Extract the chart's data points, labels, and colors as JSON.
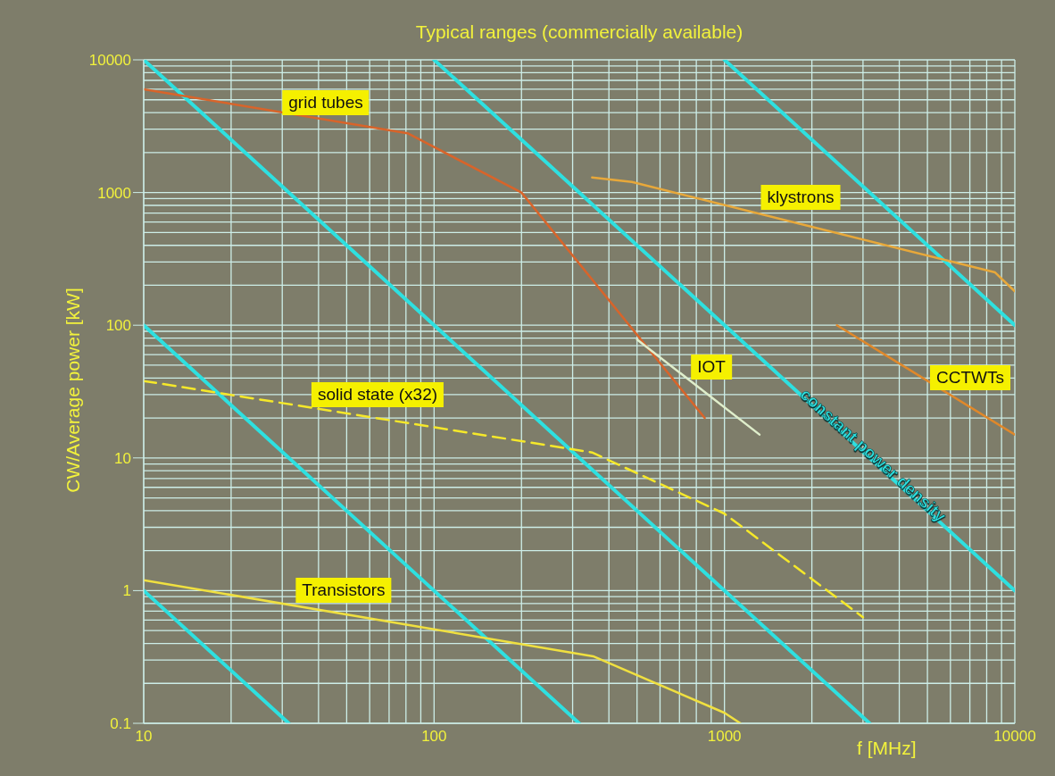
{
  "chart_data": {
    "type": "line",
    "title": "Typical ranges (commercially available)",
    "xlabel": "f [MHz]",
    "ylabel": "CW/Average power [kW]",
    "log": "xy",
    "grid": true,
    "marker": "none",
    "line_style": "solid",
    "xlim": [
      10,
      10000
    ],
    "xticks": [
      10,
      100,
      1000,
      10000
    ],
    "ylim": [
      0.1,
      10000
    ],
    "yticks": [
      0.1,
      1,
      10,
      100,
      1000,
      10000
    ],
    "annotations": [
      "constant power density"
    ],
    "series": [
      {
        "name": "grid tubes",
        "color": "#d8642a",
        "x": [
          10,
          81,
          100,
          200,
          855
        ],
        "values": [
          6000,
          2800,
          2200,
          1000,
          20
        ]
      },
      {
        "name": "klystrons",
        "color": "#e8a83a",
        "x": [
          350,
          480,
          8550,
          10000
        ],
        "values": [
          1300,
          1200,
          250,
          180
        ]
      },
      {
        "name": "IOT",
        "color": "#dfeecb",
        "x": [
          500,
          1320
        ],
        "values": [
          78,
          15
        ]
      },
      {
        "name": "CCTWTs",
        "color": "#e0882a",
        "x": [
          2440,
          10000
        ],
        "values": [
          100,
          15
        ]
      },
      {
        "name": "solid state (x32)",
        "color": "#f5e82a",
        "line_style": "dashed",
        "x": [
          10,
          350,
          1000,
          3000
        ],
        "values": [
          38,
          11,
          3.8,
          0.63
        ]
      },
      {
        "name": "Transistors",
        "color": "#f0e040",
        "x": [
          10,
          353,
          1000,
          1135
        ],
        "values": [
          1.2,
          0.32,
          0.12,
          0.1
        ]
      },
      {
        "color": "#2ee0e0",
        "x": [
          10,
          3162
        ],
        "values": [
          10000,
          0.1
        ]
      },
      {
        "color": "#2ee0e0",
        "x": [
          100,
          10000
        ],
        "values": [
          10000,
          1
        ]
      },
      {
        "color": "#2ee0e0",
        "x": [
          1000,
          10000
        ],
        "values": [
          10000,
          100
        ]
      },
      {
        "color": "#2ee0e0",
        "x": [
          10,
          316
        ],
        "values": [
          100,
          0.1
        ]
      },
      {
        "color": "#2ee0e0",
        "x": [
          10,
          31.6
        ],
        "values": [
          1,
          0.1
        ]
      }
    ]
  }
}
